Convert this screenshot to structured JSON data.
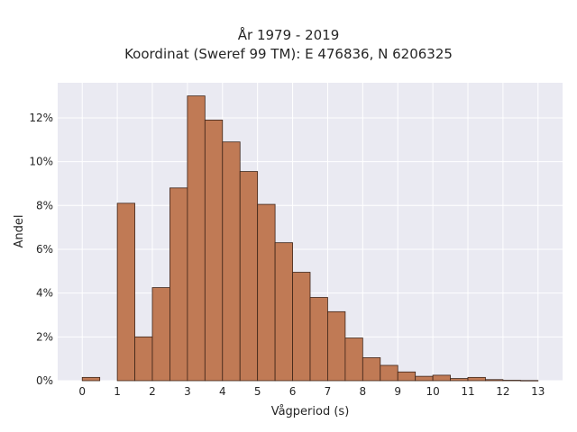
{
  "chart_data": {
    "type": "bar",
    "title": "År 1979 - 2019",
    "subtitle": "Koordinat (Sweref 99 TM): E 476836, N 6206325",
    "xlabel": "Vågperiod (s)",
    "ylabel": "Andel",
    "bin_width": 0.5,
    "xlim": [
      -0.7,
      13.7
    ],
    "ylim": [
      0,
      13.6
    ],
    "xticks": [
      0,
      1,
      2,
      3,
      4,
      5,
      6,
      7,
      8,
      9,
      10,
      11,
      12,
      13
    ],
    "xtick_labels": [
      "0",
      "1",
      "2",
      "3",
      "4",
      "5",
      "6",
      "7",
      "8",
      "9",
      "10",
      "11",
      "12",
      "13"
    ],
    "yticks": [
      0,
      2,
      4,
      6,
      8,
      10,
      12
    ],
    "ytick_labels": [
      "0%",
      "2%",
      "4%",
      "6%",
      "8%",
      "10%",
      "12%"
    ],
    "bins": [
      {
        "x": 0.0,
        "value": 0.15
      },
      {
        "x": 0.5,
        "value": 0.0
      },
      {
        "x": 1.0,
        "value": 8.1
      },
      {
        "x": 1.5,
        "value": 2.0
      },
      {
        "x": 2.0,
        "value": 4.25
      },
      {
        "x": 2.5,
        "value": 8.8
      },
      {
        "x": 3.0,
        "value": 13.0
      },
      {
        "x": 3.5,
        "value": 11.9
      },
      {
        "x": 4.0,
        "value": 10.9
      },
      {
        "x": 4.5,
        "value": 9.55
      },
      {
        "x": 5.0,
        "value": 8.05
      },
      {
        "x": 5.5,
        "value": 6.3
      },
      {
        "x": 6.0,
        "value": 4.95
      },
      {
        "x": 6.5,
        "value": 3.8
      },
      {
        "x": 7.0,
        "value": 3.15
      },
      {
        "x": 7.5,
        "value": 1.95
      },
      {
        "x": 8.0,
        "value": 1.05
      },
      {
        "x": 8.5,
        "value": 0.7
      },
      {
        "x": 9.0,
        "value": 0.4
      },
      {
        "x": 9.5,
        "value": 0.2
      },
      {
        "x": 10.0,
        "value": 0.25
      },
      {
        "x": 10.5,
        "value": 0.1
      },
      {
        "x": 11.0,
        "value": 0.15
      },
      {
        "x": 11.5,
        "value": 0.05
      },
      {
        "x": 12.0,
        "value": 0.02
      },
      {
        "x": 12.5,
        "value": 0.01
      }
    ],
    "grid": true,
    "colors": {
      "bar_fill": "#c07a55",
      "bar_edge": "#3d2418",
      "plot_background": "#eaeaf2",
      "grid": "#ffffff"
    }
  }
}
